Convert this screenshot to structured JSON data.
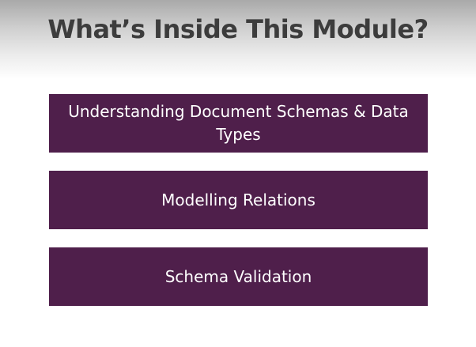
{
  "title": "What’s Inside This Module?",
  "colors": {
    "topic_background": "#4f1f4b",
    "title_text": "#3c3c3c",
    "topic_text": "#ffffff"
  },
  "topics": [
    {
      "label": "Understanding Document Schemas & Data Types"
    },
    {
      "label": "Modelling Relations"
    },
    {
      "label": "Schema Validation"
    }
  ]
}
